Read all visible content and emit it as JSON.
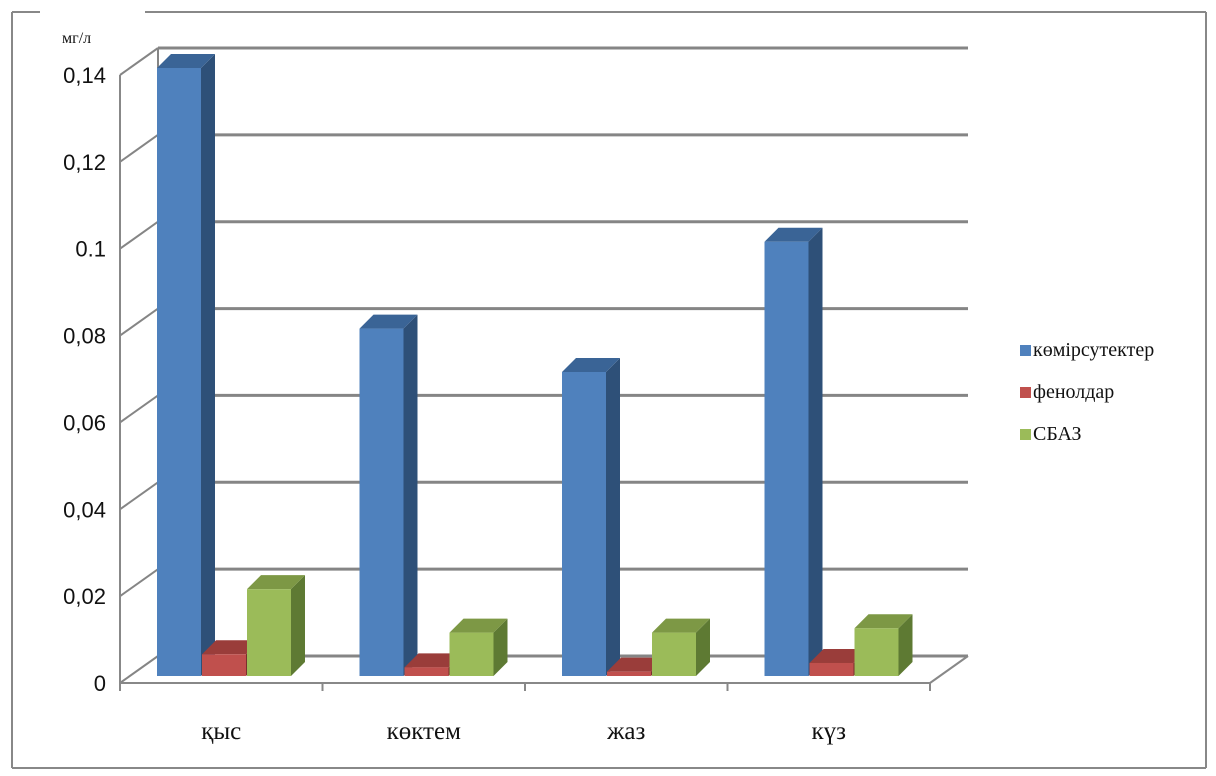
{
  "chart_data": {
    "type": "bar",
    "title": "",
    "ylabel": "мг/л",
    "xlabel": "",
    "ylim": [
      0,
      0.14
    ],
    "yticks": [
      "0",
      "0,02",
      "0,04",
      "0,06",
      "0,08",
      "0.1",
      "0,12",
      "0,14"
    ],
    "categories": [
      "қыс",
      "көктем",
      "жаз",
      "күз"
    ],
    "series": [
      {
        "name": "көмірсутектер",
        "values": [
          0.14,
          0.08,
          0.07,
          0.1
        ]
      },
      {
        "name": "фенолдар",
        "values": [
          0.005,
          0.002,
          0.001,
          0.003
        ]
      },
      {
        "name": "СБАЗ",
        "values": [
          0.02,
          0.01,
          0.01,
          0.011
        ]
      }
    ],
    "grid": true,
    "legend": "right",
    "colors": {
      "series_front": [
        "#4f81bd",
        "#c0504d",
        "#9bbb59"
      ],
      "series_side": [
        "#2e5078",
        "#7a2f2d",
        "#5e7a33"
      ],
      "series_top": [
        "#3a6496",
        "#9a3d3a",
        "#7d9845"
      ],
      "grid": "#858585",
      "frame": "#888888"
    }
  }
}
